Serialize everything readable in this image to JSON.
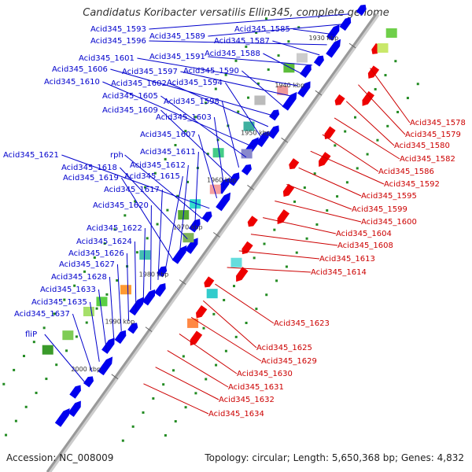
{
  "title": "Candidatus Koribacter versatilis Ellin345, complete genome",
  "footer": {
    "accession": "Accession: NC_008009",
    "topology": "Topology: circular; Length: 5,650,368 bp; Genes: 4,832"
  },
  "colors": {
    "forward_gene": "#0000ee",
    "reverse_gene": "#ee0000",
    "forward_label": "#0000cc",
    "reverse_label": "#cc0000",
    "backbone": "#999999",
    "tick_label": "#333333",
    "dot_green": "#228b22"
  },
  "kbp_ticks": [
    "1930 kbp",
    "1940 kbp",
    "1950 kbp",
    "1960 kbp",
    "1970 kbp",
    "1980 kbp",
    "1990 kbp",
    "2000 kbp"
  ],
  "forward_labels": [
    "Acid345_1593",
    "Acid345_1589",
    "Acid345_1585",
    "Acid345_1596",
    "Acid345_1587",
    "Acid345_1591",
    "Acid345_1588",
    "Acid345_1601",
    "Acid345_1597",
    "Acid345_1590",
    "Acid345_1606",
    "Acid345_1602",
    "Acid345_1594",
    "Acid345_1610",
    "Acid345_1605",
    "Acid345_1598",
    "Acid345_1609",
    "Acid345_1603",
    "Acid345_1607",
    "Acid345_1621",
    "rph",
    "Acid345_1611",
    "Acid345_1618",
    "Acid345_1612",
    "Acid345_1619",
    "Acid345_1615",
    "Acid345_1617",
    "Acid345_1620",
    "Acid345_1622",
    "Acid345_1624",
    "Acid345_1626",
    "Acid345_1627",
    "Acid345_1628",
    "Acid345_1633",
    "Acid345_1635",
    "Acid345_1637",
    "fliP"
  ],
  "reverse_labels": [
    "Acid345_1578",
    "Acid345_1579",
    "Acid345_1580",
    "Acid345_1582",
    "Acid345_1586",
    "Acid345_1592",
    "Acid345_1595",
    "Acid345_1599",
    "Acid345_1600",
    "Acid345_1604",
    "Acid345_1608",
    "Acid345_1613",
    "Acid345_1614",
    "Acid345_1623",
    "Acid345_1625",
    "Acid345_1629",
    "Acid345_1630",
    "Acid345_1631",
    "Acid345_1632",
    "Acid345_1634"
  ]
}
